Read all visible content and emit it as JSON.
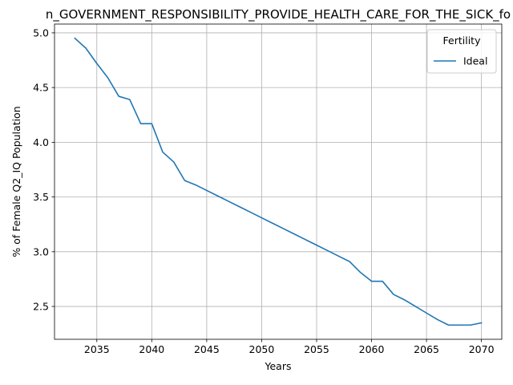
{
  "chart_data": {
    "type": "line",
    "title": "n_GOVERNMENT_RESPONSIBILITY_PROVIDE_HEALTH_CARE_FOR_THE_SICK_fo",
    "xlabel": "Years",
    "ylabel": "% of Female Q2_IQ Population",
    "xlim": [
      2031.15,
      2071.85
    ],
    "ylim": [
      2.2,
      5.08
    ],
    "xticks": [
      2035,
      2040,
      2045,
      2050,
      2055,
      2060,
      2065,
      2070
    ],
    "yticks": [
      2.5,
      3.0,
      3.5,
      4.0,
      4.5,
      5.0
    ],
    "xtick_labels": [
      "2035",
      "2040",
      "2045",
      "2050",
      "2055",
      "2060",
      "2065",
      "2070"
    ],
    "ytick_labels": [
      "2.5",
      "3.0",
      "3.5",
      "4.0",
      "4.5",
      "5.0"
    ],
    "grid": true,
    "legend": {
      "title": "Fertility",
      "placement": "top-right"
    },
    "series": [
      {
        "name": "Ideal",
        "color": "#1f77b4",
        "x": [
          2033,
          2034,
          2035,
          2036,
          2037,
          2038,
          2039,
          2040,
          2041,
          2042,
          2043,
          2044,
          2045,
          2046,
          2047,
          2048,
          2049,
          2050,
          2051,
          2052,
          2053,
          2054,
          2055,
          2056,
          2057,
          2058,
          2059,
          2060,
          2061,
          2062,
          2063,
          2064,
          2065,
          2066,
          2067,
          2068,
          2069,
          2070
        ],
        "y": [
          4.95,
          4.86,
          4.72,
          4.59,
          4.42,
          4.39,
          4.17,
          4.17,
          3.91,
          3.82,
          3.65,
          3.61,
          3.56,
          3.51,
          3.46,
          3.41,
          3.36,
          3.31,
          3.26,
          3.21,
          3.16,
          3.11,
          3.06,
          3.01,
          2.96,
          2.91,
          2.81,
          2.73,
          2.73,
          2.61,
          2.56,
          2.5,
          2.44,
          2.38,
          2.33,
          2.33,
          2.33,
          2.35
        ]
      }
    ]
  }
}
